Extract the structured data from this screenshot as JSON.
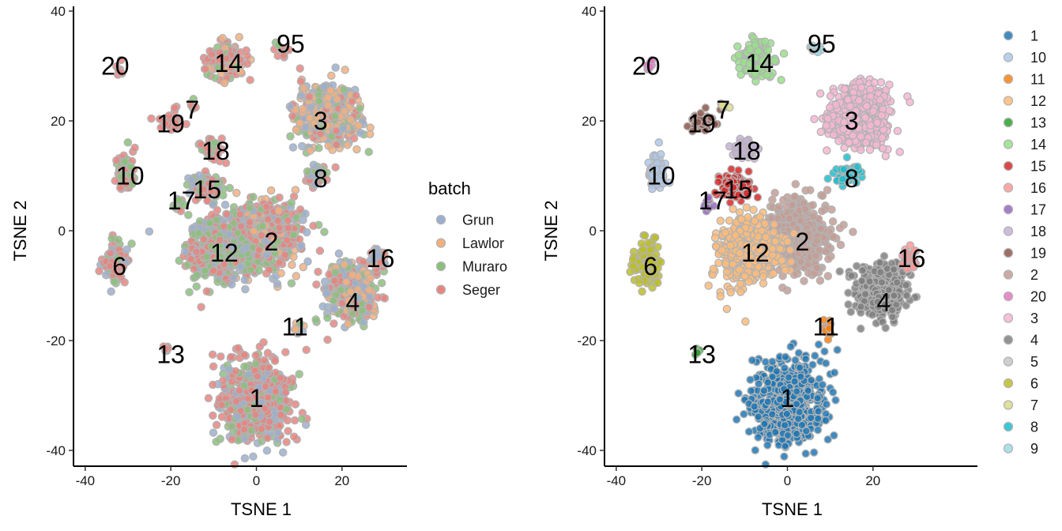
{
  "chart_data": [
    {
      "type": "scatter",
      "xlabel": "TSNE 1",
      "ylabel": "TSNE 2",
      "xlim": [
        -43,
        35
      ],
      "ylim": [
        -43,
        40
      ],
      "xticks": [
        "-40",
        "-20",
        "0",
        "20"
      ],
      "yticks": [
        "-40",
        "-20",
        "0",
        "20",
        "40"
      ],
      "grid": false,
      "legend_position": "right",
      "legend_title": "batch",
      "legend": [
        {
          "name": "Grun",
          "color": "#9AAFCF"
        },
        {
          "name": "Lawlor",
          "color": "#F3B07E"
        },
        {
          "name": "Muraro",
          "color": "#8BC07B"
        },
        {
          "name": "Seger",
          "color": "#E8847F"
        }
      ],
      "labels": [
        {
          "text": "20",
          "x": -33,
          "y": 30
        },
        {
          "text": "14",
          "x": -6.5,
          "y": 30.5
        },
        {
          "text": "95",
          "x": 8,
          "y": 34
        },
        {
          "text": "7",
          "x": -15,
          "y": 22
        },
        {
          "text": "19",
          "x": -20,
          "y": 19.5
        },
        {
          "text": "3",
          "x": 15,
          "y": 20
        },
        {
          "text": "18",
          "x": -9.5,
          "y": 14.5
        },
        {
          "text": "10",
          "x": -29.5,
          "y": 10
        },
        {
          "text": "8",
          "x": 15,
          "y": 9.5
        },
        {
          "text": "17",
          "x": -17.5,
          "y": 5.5
        },
        {
          "text": "15",
          "x": -11.5,
          "y": 7.5
        },
        {
          "text": "2",
          "x": 3.5,
          "y": -2
        },
        {
          "text": "12",
          "x": -7.5,
          "y": -4
        },
        {
          "text": "16",
          "x": 29,
          "y": -5
        },
        {
          "text": "6",
          "x": -32,
          "y": -6.5
        },
        {
          "text": "4",
          "x": 22.5,
          "y": -13
        },
        {
          "text": "11",
          "x": 9,
          "y": -17.5
        },
        {
          "text": "13",
          "x": -20,
          "y": -22.5
        },
        {
          "text": "1",
          "x": 0,
          "y": -30.5
        }
      ],
      "clusters": [
        {
          "id": "1",
          "batch_colors": [
            "#E8847F",
            "#E8847F",
            "#E8847F",
            "#9AAFCF",
            "#8BC07B"
          ],
          "cx": 0,
          "cy": -31,
          "rx": 9,
          "ry": 8,
          "n": 520
        },
        {
          "id": "2",
          "batch_colors": [
            "#E8847F",
            "#9AAFCF",
            "#8BC07B",
            "#F3B07E",
            "#E8847F"
          ],
          "cx": 2,
          "cy": -1,
          "rx": 9,
          "ry": 7,
          "n": 520
        },
        {
          "id": "12",
          "batch_colors": [
            "#E8847F",
            "#E8847F",
            "#8BC07B",
            "#8BC07B",
            "#9AAFCF"
          ],
          "cx": -9,
          "cy": -3.5,
          "rx": 8,
          "ry": 6.5,
          "n": 460
        },
        {
          "id": "3",
          "batch_colors": [
            "#F3B07E",
            "#E8847F",
            "#8BC07B",
            "#9AAFCF",
            "#F3B07E"
          ],
          "cx": 17,
          "cy": 21,
          "rx": 8,
          "ry": 6,
          "n": 480
        },
        {
          "id": "4",
          "batch_colors": [
            "#E8847F",
            "#9AAFCF",
            "#E8847F",
            "#8BC07B",
            "#F3B07E"
          ],
          "cx": 22,
          "cy": -11,
          "rx": 6.5,
          "ry": 5.5,
          "n": 330
        },
        {
          "id": "6",
          "batch_colors": [
            "#E8847F",
            "#E8847F",
            "#9AAFCF",
            "#8BC07B"
          ],
          "cx": -33,
          "cy": -6,
          "rx": 3,
          "ry": 4,
          "n": 120
        },
        {
          "id": "8",
          "batch_colors": [
            "#8BC07B",
            "#9AAFCF",
            "#E8847F"
          ],
          "cx": 14,
          "cy": 10,
          "rx": 3,
          "ry": 2,
          "n": 60
        },
        {
          "id": "10",
          "batch_colors": [
            "#E8847F",
            "#E8847F",
            "#8BC07B"
          ],
          "cx": -30.5,
          "cy": 11,
          "rx": 2.5,
          "ry": 3.5,
          "n": 70
        },
        {
          "id": "14",
          "batch_colors": [
            "#E8847F",
            "#E8847F",
            "#F3B07E",
            "#8BC07B"
          ],
          "cx": -7,
          "cy": 31,
          "rx": 4.5,
          "ry": 3.5,
          "n": 140
        },
        {
          "id": "15",
          "batch_colors": [
            "#E8847F",
            "#E8847F",
            "#8BC07B",
            "#9AAFCF"
          ],
          "cx": -12,
          "cy": 8,
          "rx": 4.5,
          "ry": 2.5,
          "n": 100
        },
        {
          "id": "16",
          "batch_colors": [
            "#E8847F",
            "#9AAFCF",
            "#F3B07E"
          ],
          "cx": 28.5,
          "cy": -5,
          "rx": 2,
          "ry": 2,
          "n": 35
        },
        {
          "id": "18",
          "batch_colors": [
            "#E8847F",
            "#E8847F",
            "#8BC07B"
          ],
          "cx": -10,
          "cy": 15,
          "rx": 3,
          "ry": 2,
          "n": 45
        },
        {
          "id": "19",
          "batch_colors": [
            "#E8847F",
            "#E8847F"
          ],
          "cx": -20,
          "cy": 20,
          "rx": 3,
          "ry": 1.8,
          "n": 45
        },
        {
          "id": "20",
          "batch_colors": [
            "#E8847F"
          ],
          "cx": -32,
          "cy": 30,
          "rx": 1,
          "ry": 1,
          "n": 8
        },
        {
          "id": "17",
          "batch_colors": [
            "#E8847F",
            "#8BC07B"
          ],
          "cx": -18,
          "cy": 5,
          "rx": 1.5,
          "ry": 1.5,
          "n": 12
        },
        {
          "id": "7",
          "batch_colors": [
            "#E8847F",
            "#8BC07B"
          ],
          "cx": -15,
          "cy": 22.5,
          "rx": 1,
          "ry": 1,
          "n": 6
        },
        {
          "id": "95",
          "batch_colors": [
            "#E8847F",
            "#8BC07B"
          ],
          "cx": 6,
          "cy": 33,
          "rx": 1.8,
          "ry": 1.2,
          "n": 12
        },
        {
          "id": "11",
          "batch_colors": [
            "#9AAFCF",
            "#8BC07B",
            "#F3B07E"
          ],
          "cx": 9.5,
          "cy": -18,
          "rx": 1.2,
          "ry": 1.5,
          "n": 15
        },
        {
          "id": "13",
          "batch_colors": [
            "#E8847F",
            "#8BC07B"
          ],
          "cx": -21,
          "cy": -22,
          "rx": 0.8,
          "ry": 0.8,
          "n": 6
        }
      ]
    },
    {
      "type": "scatter",
      "xlabel": "TSNE 1",
      "ylabel": "TSNE 2",
      "xlim": [
        -43,
        35
      ],
      "ylim": [
        -43,
        40
      ],
      "xticks": [
        "-40",
        "-20",
        "0",
        "20"
      ],
      "yticks": [
        "-40",
        "-20",
        "0",
        "20",
        "40"
      ],
      "grid": false,
      "legend_position": "right",
      "legend": [
        {
          "name": "1",
          "color": "#1F77B4"
        },
        {
          "name": "10",
          "color": "#AEC7E8"
        },
        {
          "name": "11",
          "color": "#FF7F0E"
        },
        {
          "name": "12",
          "color": "#FFBB78"
        },
        {
          "name": "13",
          "color": "#2CA02C"
        },
        {
          "name": "14",
          "color": "#98DF8A"
        },
        {
          "name": "15",
          "color": "#D62728"
        },
        {
          "name": "16",
          "color": "#FF9896"
        },
        {
          "name": "17",
          "color": "#9467BD"
        },
        {
          "name": "18",
          "color": "#C5B0D5"
        },
        {
          "name": "19",
          "color": "#8C564B"
        },
        {
          "name": "2",
          "color": "#C49C94"
        },
        {
          "name": "20",
          "color": "#E377C2"
        },
        {
          "name": "3",
          "color": "#F7B6D2"
        },
        {
          "name": "4",
          "color": "#7F7F7F"
        },
        {
          "name": "5",
          "color": "#C7C7C7"
        },
        {
          "name": "6",
          "color": "#BCBD22"
        },
        {
          "name": "7",
          "color": "#DBDB8D"
        },
        {
          "name": "8",
          "color": "#17BECF"
        },
        {
          "name": "9",
          "color": "#9EDAE5"
        }
      ],
      "labels": [
        {
          "text": "20",
          "x": -33,
          "y": 30
        },
        {
          "text": "14",
          "x": -6.5,
          "y": 30.5
        },
        {
          "text": "95",
          "x": 8,
          "y": 34
        },
        {
          "text": "7",
          "x": -15,
          "y": 22
        },
        {
          "text": "19",
          "x": -20,
          "y": 19.5
        },
        {
          "text": "3",
          "x": 15,
          "y": 20
        },
        {
          "text": "18",
          "x": -9.5,
          "y": 14.5
        },
        {
          "text": "10",
          "x": -29.5,
          "y": 10
        },
        {
          "text": "8",
          "x": 15,
          "y": 9.5
        },
        {
          "text": "17",
          "x": -17.5,
          "y": 5.5
        },
        {
          "text": "15",
          "x": -11.5,
          "y": 7.5
        },
        {
          "text": "2",
          "x": 3.5,
          "y": -2
        },
        {
          "text": "12",
          "x": -7.5,
          "y": -4
        },
        {
          "text": "16",
          "x": 29,
          "y": -5
        },
        {
          "text": "6",
          "x": -32,
          "y": -6.5
        },
        {
          "text": "4",
          "x": 22.5,
          "y": -13
        },
        {
          "text": "11",
          "x": 9,
          "y": -17.5
        },
        {
          "text": "13",
          "x": -20,
          "y": -22.5
        },
        {
          "text": "1",
          "x": 0,
          "y": -30.5
        }
      ],
      "clusters": [
        {
          "id": "1",
          "color": "#1F77B4",
          "cx": 0,
          "cy": -31,
          "rx": 9,
          "ry": 8,
          "n": 520
        },
        {
          "id": "2",
          "color": "#C49C94",
          "cx": 3,
          "cy": -1,
          "rx": 8,
          "ry": 7,
          "n": 500
        },
        {
          "id": "12",
          "color": "#FFBB78",
          "cx": -9,
          "cy": -3.5,
          "rx": 8,
          "ry": 6.5,
          "n": 460
        },
        {
          "id": "3",
          "color": "#F7B6D2",
          "cx": 17,
          "cy": 21,
          "rx": 8,
          "ry": 6,
          "n": 480
        },
        {
          "id": "4",
          "color": "#7F7F7F",
          "cx": 22,
          "cy": -11,
          "rx": 6.5,
          "ry": 5.5,
          "n": 330
        },
        {
          "id": "6",
          "color": "#BCBD22",
          "cx": -33,
          "cy": -6,
          "rx": 3,
          "ry": 4,
          "n": 120
        },
        {
          "id": "8",
          "color": "#17BECF",
          "cx": 14,
          "cy": 10,
          "rx": 3,
          "ry": 2,
          "n": 60
        },
        {
          "id": "10",
          "color": "#AEC7E8",
          "cx": -30.5,
          "cy": 11,
          "rx": 2.5,
          "ry": 3.5,
          "n": 70
        },
        {
          "id": "14",
          "color": "#98DF8A",
          "cx": -7,
          "cy": 31,
          "rx": 4.5,
          "ry": 3.5,
          "n": 140
        },
        {
          "id": "15",
          "color": "#D62728",
          "cx": -12,
          "cy": 8,
          "rx": 4.5,
          "ry": 2.5,
          "n": 100
        },
        {
          "id": "16",
          "color": "#FF9896",
          "cx": 28.5,
          "cy": -5,
          "rx": 2,
          "ry": 2,
          "n": 35
        },
        {
          "id": "18",
          "color": "#C5B0D5",
          "cx": -10,
          "cy": 15,
          "rx": 3,
          "ry": 2,
          "n": 45
        },
        {
          "id": "19",
          "color": "#8C564B",
          "cx": -20,
          "cy": 20,
          "rx": 3,
          "ry": 1.8,
          "n": 45
        },
        {
          "id": "20",
          "color": "#E377C2",
          "cx": -32,
          "cy": 30,
          "rx": 1,
          "ry": 1,
          "n": 8
        },
        {
          "id": "17",
          "color": "#9467BD",
          "cx": -18,
          "cy": 5,
          "rx": 1.5,
          "ry": 1.5,
          "n": 12
        },
        {
          "id": "7",
          "color": "#DBDB8D",
          "cx": -15,
          "cy": 22.5,
          "rx": 1,
          "ry": 1,
          "n": 6
        },
        {
          "id": "5",
          "color": "#C7C7C7",
          "cx": 6,
          "cy": 33,
          "rx": 1.2,
          "ry": 1,
          "n": 6
        },
        {
          "id": "9",
          "color": "#9EDAE5",
          "cx": 7,
          "cy": 33,
          "rx": 1,
          "ry": 1,
          "n": 6
        },
        {
          "id": "11",
          "color": "#FF7F0E",
          "cx": 9.5,
          "cy": -18,
          "rx": 1.2,
          "ry": 1.5,
          "n": 15
        },
        {
          "id": "13",
          "color": "#2CA02C",
          "cx": -21,
          "cy": -22,
          "rx": 0.8,
          "ry": 0.8,
          "n": 6
        }
      ]
    }
  ]
}
